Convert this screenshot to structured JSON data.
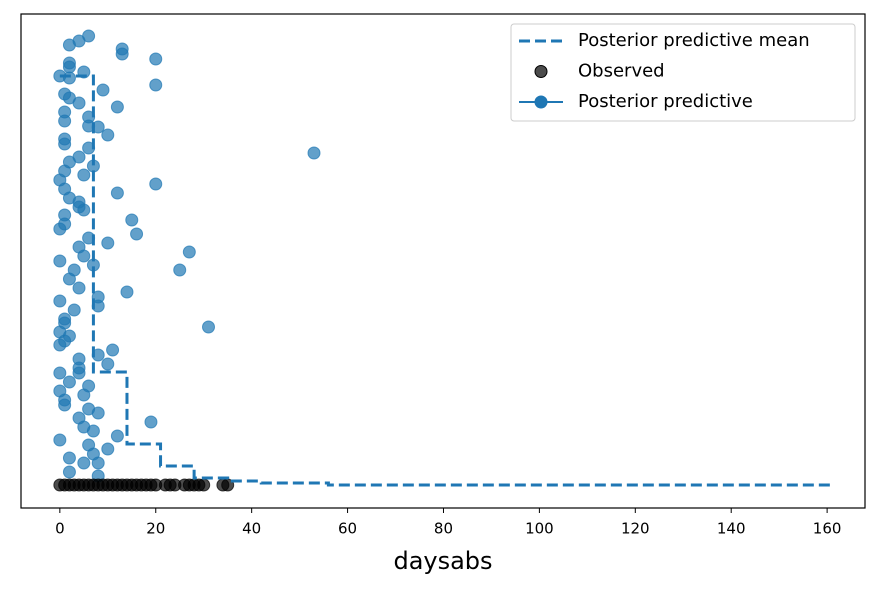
{
  "chart_data": {
    "type": "scatter",
    "xlabel": "daysabs",
    "xlim": [
      -8.1,
      167.9
    ],
    "ylim": [
      0,
      494
    ],
    "xticks": [
      0,
      20,
      40,
      60,
      80,
      100,
      120,
      140,
      160
    ],
    "legend": "upper right",
    "series": [
      {
        "name": "Posterior predictive mean",
        "type": "step",
        "color": "#1f77b4",
        "x": [
          0,
          7,
          14,
          21,
          28,
          35,
          42,
          56,
          161
        ],
        "values": [
          432,
          136,
          64,
          42,
          30,
          27,
          25,
          23,
          23
        ]
      },
      {
        "name": "Observed",
        "type": "scatter",
        "color": "#000000",
        "x": [
          0,
          1,
          2,
          3,
          4,
          5,
          6,
          7,
          8,
          9,
          10,
          11,
          12,
          13,
          14,
          15,
          16,
          17,
          18,
          19,
          20,
          22,
          23,
          24,
          26,
          27,
          28,
          29,
          30,
          34,
          35
        ],
        "values": [
          23,
          23,
          23,
          23,
          23,
          23,
          23,
          23,
          23,
          23,
          23,
          23,
          23,
          23,
          23,
          23,
          23,
          23,
          23,
          23,
          23,
          23,
          23,
          23,
          23,
          23,
          23,
          23,
          23,
          23,
          23
        ]
      },
      {
        "name": "Posterior predictive",
        "type": "scatter",
        "color": "#1f77b4",
        "x": [
          2,
          4,
          6,
          2,
          2,
          5,
          0,
          2,
          13,
          13,
          20,
          20,
          9,
          1,
          2,
          4,
          12,
          1,
          6,
          1,
          6,
          8,
          10,
          1,
          1,
          6,
          53,
          4,
          2,
          7,
          1,
          5,
          0,
          20,
          1,
          12,
          2,
          4,
          4,
          5,
          1,
          15,
          1,
          0,
          16,
          6,
          10,
          4,
          27,
          5,
          0,
          7,
          3,
          25,
          2,
          4,
          14,
          8,
          0,
          8,
          3,
          31,
          1,
          1,
          0,
          2,
          1,
          0,
          11,
          8,
          4,
          10,
          4,
          4,
          0,
          2,
          6,
          0,
          5,
          1,
          1,
          6,
          8,
          4,
          19,
          5,
          7,
          12,
          0,
          6,
          10,
          7,
          2,
          5,
          8,
          2,
          8
        ],
        "values": [
          463,
          467,
          472,
          445,
          441,
          436,
          432,
          430,
          459,
          454,
          449,
          423,
          418,
          414,
          410,
          405,
          401,
          396,
          391,
          387,
          382,
          381,
          373,
          369,
          364,
          360,
          355,
          351,
          346,
          342,
          337,
          333,
          328,
          324,
          319,
          315,
          310,
          306,
          301,
          298,
          293,
          288,
          284,
          279,
          274,
          270,
          265,
          261,
          256,
          252,
          247,
          243,
          238,
          238,
          229,
          220,
          216,
          211,
          207,
          202,
          198,
          181,
          189,
          185,
          176,
          172,
          167,
          163,
          158,
          153,
          149,
          144,
          140,
          135,
          135,
          126,
          122,
          117,
          113,
          108,
          103,
          99,
          95,
          90,
          86,
          81,
          77,
          72,
          68,
          63,
          59,
          54,
          50,
          45,
          45,
          36,
          32
        ]
      }
    ]
  }
}
